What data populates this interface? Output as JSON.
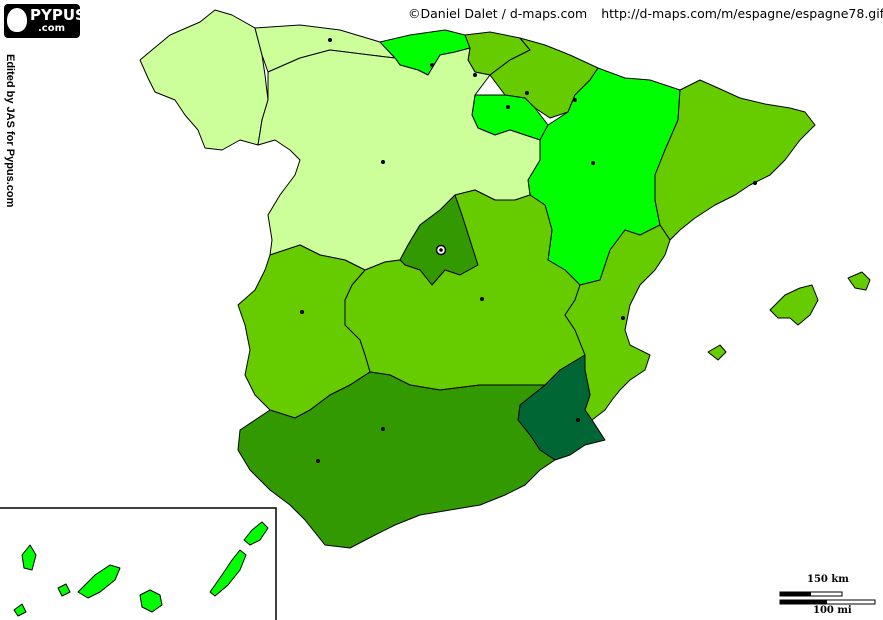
{
  "credits": {
    "copyright": "©Daniel Dalet / d-maps.com",
    "url": "http://d-maps.com/m/espagne/espagne78.gif",
    "edited_by": "Edited by JAS for Pypus.com"
  },
  "logo": {
    "name": "PYPUS",
    "domain": ".com"
  },
  "scale": {
    "km_label": "150 km",
    "mi_label": "100 mi"
  },
  "colors": {
    "very_light": "#ccff99",
    "bright": "#00ff00",
    "medium": "#66cc00",
    "dark": "#339900",
    "darkest": "#006633",
    "border": "#000000",
    "sea": "#ffffff"
  },
  "regions": [
    {
      "name": "Galicia",
      "shade": "very_light"
    },
    {
      "name": "Asturias",
      "shade": "very_light"
    },
    {
      "name": "Cantabria",
      "shade": "bright"
    },
    {
      "name": "País Vasco",
      "shade": "medium"
    },
    {
      "name": "Navarra",
      "shade": "medium"
    },
    {
      "name": "La Rioja",
      "shade": "bright"
    },
    {
      "name": "Aragón",
      "shade": "bright"
    },
    {
      "name": "Cataluña",
      "shade": "medium"
    },
    {
      "name": "Castilla y León",
      "shade": "very_light"
    },
    {
      "name": "Madrid",
      "shade": "dark"
    },
    {
      "name": "Castilla-La Mancha",
      "shade": "medium"
    },
    {
      "name": "Comunidad Valenciana",
      "shade": "medium"
    },
    {
      "name": "Extremadura",
      "shade": "medium"
    },
    {
      "name": "Murcia",
      "shade": "darkest"
    },
    {
      "name": "Andalucía",
      "shade": "dark"
    },
    {
      "name": "Islas Baleares",
      "shade": "medium"
    },
    {
      "name": "Islas Canarias",
      "shade": "bright"
    }
  ]
}
